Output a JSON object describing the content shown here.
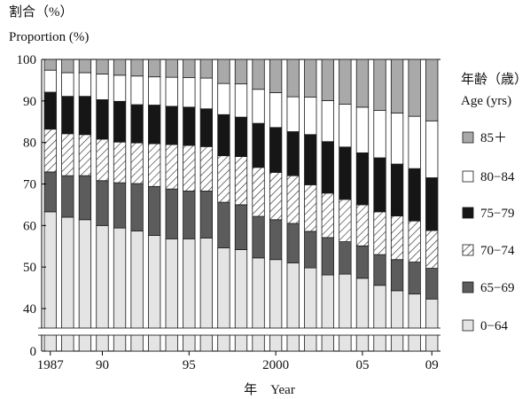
{
  "chart_data": {
    "type": "bar",
    "stacked": true,
    "title": "",
    "ylabel": [
      "割合（%）",
      "Proportion (%)"
    ],
    "xlabel": "年　Year",
    "legend_title": [
      "年齢（歳）",
      "Age (yrs)"
    ],
    "legend_position": "right",
    "ylim": [
      0,
      100
    ],
    "y_axis_break": true,
    "y_ticks": [
      0,
      40,
      50,
      60,
      70,
      80,
      90,
      100
    ],
    "x": [
      1987,
      1988,
      1989,
      1990,
      1991,
      1992,
      1993,
      1994,
      1995,
      1996,
      1997,
      1998,
      1999,
      2000,
      2001,
      2002,
      2003,
      2004,
      2005,
      2006,
      2007,
      2008,
      2009
    ],
    "x_tick_labels": [
      {
        "year": 1987,
        "label": "1987"
      },
      {
        "year": 1990,
        "label": "90"
      },
      {
        "year": 1995,
        "label": "95"
      },
      {
        "year": 2000,
        "label": "2000"
      },
      {
        "year": 2005,
        "label": "05"
      },
      {
        "year": 2009,
        "label": "09"
      }
    ],
    "series": [
      {
        "name": "0−64",
        "pattern": "light",
        "values": [
          63.3,
          62.0,
          61.4,
          60.0,
          59.4,
          58.7,
          57.6,
          56.8,
          56.8,
          57.0,
          54.6,
          54.2,
          52.2,
          51.8,
          51.0,
          49.8,
          48.1,
          48.3,
          47.3,
          45.6,
          44.3,
          43.5,
          42.3
        ]
      },
      {
        "name": "65−69",
        "pattern": "dark-gray",
        "values": [
          9.6,
          10.0,
          10.6,
          10.8,
          10.9,
          11.4,
          11.8,
          12.0,
          11.5,
          11.3,
          11.0,
          10.8,
          10.0,
          9.6,
          9.5,
          8.8,
          9.0,
          7.8,
          7.8,
          7.4,
          7.5,
          7.7,
          7.4
        ]
      },
      {
        "name": "70−74",
        "pattern": "hatch",
        "values": [
          10.3,
          10.1,
          9.9,
          10.0,
          9.8,
          9.8,
          10.3,
          10.7,
          11.0,
          10.7,
          11.2,
          11.6,
          11.8,
          11.4,
          11.5,
          11.2,
          10.7,
          10.2,
          9.9,
          10.3,
          10.5,
          9.9,
          9.1
        ]
      },
      {
        "name": "75−79",
        "pattern": "black",
        "values": [
          8.9,
          9.0,
          9.2,
          9.5,
          9.8,
          9.2,
          9.3,
          9.2,
          9.2,
          9.1,
          9.9,
          9.5,
          10.6,
          10.8,
          10.6,
          12.1,
          12.4,
          12.6,
          12.5,
          13.0,
          12.5,
          12.6,
          12.7
        ]
      },
      {
        "name": "80−84",
        "pattern": "white",
        "values": [
          5.3,
          5.7,
          5.7,
          6.2,
          6.3,
          6.9,
          6.8,
          7.0,
          7.1,
          7.4,
          7.5,
          8.0,
          8.2,
          8.4,
          8.4,
          9.0,
          9.9,
          10.3,
          11.0,
          11.4,
          12.3,
          12.6,
          13.7
        ]
      },
      {
        "name": "85＋",
        "pattern": "mid-gray",
        "values": [
          2.6,
          3.2,
          3.2,
          3.5,
          3.8,
          4.0,
          4.2,
          4.3,
          4.4,
          4.5,
          5.8,
          5.9,
          7.2,
          8.0,
          9.0,
          9.1,
          9.9,
          10.8,
          11.5,
          12.3,
          12.9,
          13.7,
          14.8
        ]
      }
    ],
    "colors": {
      "light": "#e4e4e4",
      "dark-gray": "#5c5c5c",
      "black": "#161616",
      "white": "#ffffff",
      "mid-gray": "#a9a9a9",
      "hatch-line": "#222222",
      "stroke": "#1a1a1a"
    }
  }
}
